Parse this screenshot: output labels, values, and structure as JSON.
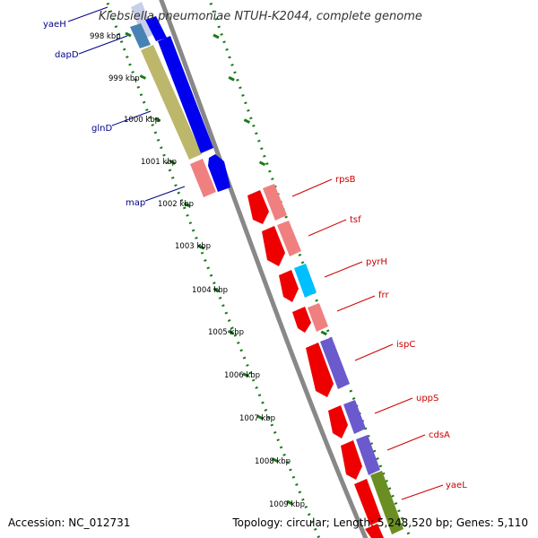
{
  "title": "Klebsiella pneumoniae NTUH-K2044, complete genome",
  "footer": {
    "accession": "Accession: NC_012731",
    "summary": "Topology: circular; Length: 5,248,520 bp; Genes: 5,110"
  },
  "ticks": [
    {
      "label": "998 kbp"
    },
    {
      "label": "999 kbp"
    },
    {
      "label": "1000 kbp"
    },
    {
      "label": "1001 kbp"
    },
    {
      "label": "1002 kbp"
    },
    {
      "label": "1003 kbp"
    },
    {
      "label": "1004 kbp"
    },
    {
      "label": "1005 kbp"
    },
    {
      "label": "1006 kbp"
    },
    {
      "label": "1007 kbp"
    },
    {
      "label": "1008 kbp"
    },
    {
      "label": "1009 kbp"
    }
  ],
  "genes_left": [
    {
      "name": "yaeH"
    },
    {
      "name": "dapD"
    },
    {
      "name": "glnD"
    },
    {
      "name": "map"
    }
  ],
  "genes_right": [
    {
      "name": "rpsB"
    },
    {
      "name": "tsf"
    },
    {
      "name": "pyrH"
    },
    {
      "name": "frr"
    },
    {
      "name": "ispC"
    },
    {
      "name": "uppS"
    },
    {
      "name": "cdsA"
    },
    {
      "name": "yaeL"
    }
  ],
  "colors": {
    "backbone": "#888888",
    "tick": "#1a7a1a",
    "cds_blue": "#0000ee",
    "cds_red": "#ee0000",
    "cds_pink": "#f08080",
    "cds_olive": "#bdb76b",
    "cds_steel": "#4682b4",
    "cds_cyan": "#00bfff",
    "cds_purple": "#6a5acd",
    "cds_green": "#6b8e23"
  }
}
